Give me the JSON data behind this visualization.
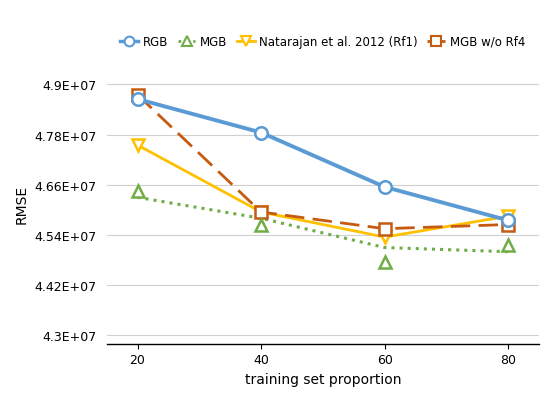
{
  "x": [
    20,
    40,
    60,
    80
  ],
  "rgb": [
    48650000.0,
    47850000.0,
    46550000.0,
    45750000.0
  ],
  "mgb_triangles": [
    46450000.0,
    45650000.0,
    44750000.0,
    45150000.0
  ],
  "mgb_dotted": [
    46300000.0,
    45800000.0,
    45100000.0,
    45000000.0
  ],
  "natarajan": [
    47550000.0,
    45950000.0,
    45350000.0,
    45850000.0
  ],
  "mgb_wo_rf4": [
    48750000.0,
    45950000.0,
    45550000.0,
    45650000.0
  ],
  "rgb_color": "#5b9bd5",
  "mgb_color": "#70ad47",
  "natarajan_color": "#ffc000",
  "mgb_wo_rf4_color": "#c55a11",
  "xlabel": "training set proportion",
  "ylabel": "RMSE",
  "ylim_min": 42800000.0,
  "ylim_max": 49500000.0,
  "yticks": [
    43000000.0,
    44200000.0,
    45400000.0,
    46600000.0,
    47800000.0,
    49000000.0
  ],
  "xticks": [
    20,
    40,
    60,
    80
  ],
  "legend_labels": [
    "RGB",
    "MGB",
    "Natarajan et al. 2012 (Rf1)",
    "MGB w/o Rf4"
  ],
  "axis_fontsize": 10,
  "tick_fontsize": 9,
  "legend_fontsize": 8.5
}
